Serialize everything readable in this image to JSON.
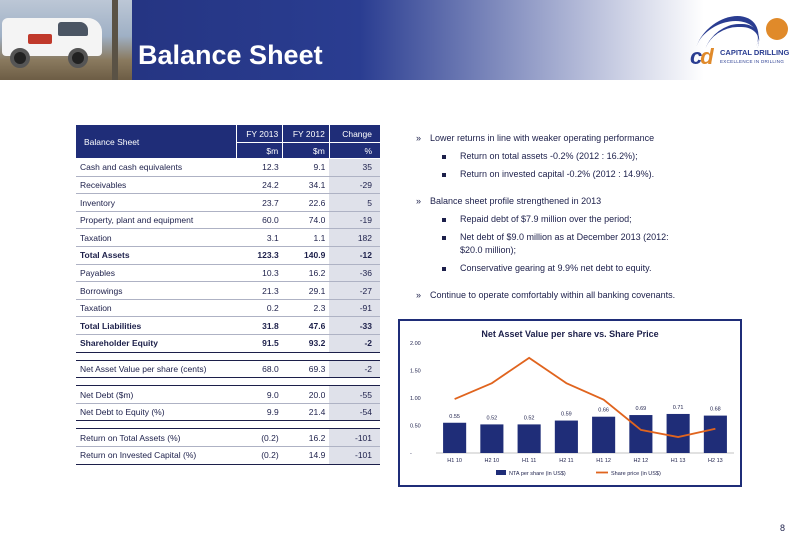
{
  "page": {
    "title": "Balance Sheet",
    "number": "8"
  },
  "logo": {
    "name": "CAPITAL DRILLING",
    "tagline": "EXCELLENCE IN DRILLING",
    "mark": "cd"
  },
  "table": {
    "header": {
      "label": "Balance Sheet",
      "col1": "FY 2013",
      "col2": "FY 2012",
      "col3": "Change",
      "unit1": "$m",
      "unit2": "$m",
      "unit3": "%"
    },
    "rows": [
      {
        "label": "Cash and cash equivalents",
        "fy2013": "12.3",
        "fy2012": "9.1",
        "change": "35"
      },
      {
        "label": "Receivables",
        "fy2013": "24.2",
        "fy2012": "34.1",
        "change": "-29"
      },
      {
        "label": "Inventory",
        "fy2013": "23.7",
        "fy2012": "22.6",
        "change": "5"
      },
      {
        "label": "Property, plant and equipment",
        "fy2013": "60.0",
        "fy2012": "74.0",
        "change": "-19"
      },
      {
        "label": "Taxation",
        "fy2013": "3.1",
        "fy2012": "1.1",
        "change": "182"
      },
      {
        "label": "Total Assets",
        "fy2013": "123.3",
        "fy2012": "140.9",
        "change": "-12"
      },
      {
        "label": "Payables",
        "fy2013": "10.3",
        "fy2012": "16.2",
        "change": "-36"
      },
      {
        "label": "Borrowings",
        "fy2013": "21.3",
        "fy2012": "29.1",
        "change": "-27"
      },
      {
        "label": "Taxation",
        "fy2013": "0.2",
        "fy2012": "2.3",
        "change": "-91"
      },
      {
        "label": "Total Liabilities",
        "fy2013": "31.8",
        "fy2012": "47.6",
        "change": "-33"
      },
      {
        "label": "Shareholder Equity",
        "fy2013": "91.5",
        "fy2012": "93.2",
        "change": "-2"
      }
    ],
    "nav": {
      "label": "Net Asset Value per share (cents)",
      "fy2013": "68.0",
      "fy2012": "69.3",
      "change": "-2"
    },
    "debt": [
      {
        "label": "Net Debt  ($m)",
        "fy2013": "9.0",
        "fy2012": "20.0",
        "change": "-55"
      },
      {
        "label": "Net Debt to Equity (%)",
        "fy2013": "9.9",
        "fy2012": "21.4",
        "change": "-54"
      }
    ],
    "returns": [
      {
        "label": "Return on Total Assets (%)",
        "fy2013": "(0.2)",
        "fy2012": "16.2",
        "change": "-101"
      },
      {
        "label": "Return on Invested Capital (%)",
        "fy2013": "(0.2)",
        "fy2012": "14.9",
        "change": "-101"
      }
    ]
  },
  "bullets": [
    {
      "text": "Lower returns in line with weaker operating performance",
      "subs": [
        "Return on total assets -0.2% (2012 : 16.2%);",
        "Return on invested capital -0.2% (2012 : 14.9%)."
      ]
    },
    {
      "text": "Balance sheet profile strengthened in 2013",
      "subs": [
        "Repaid debt of $7.9 million over the period;",
        "Net debt of $9.0 million as at December 2013 (2012:",
        "$20.0 million);",
        "Conservative gearing at 9.9% net debt to equity."
      ]
    },
    {
      "text": "Continue to operate comfortably within all banking covenants.",
      "subs": []
    }
  ],
  "chart_data": {
    "type": "bar",
    "title": "Net Asset Value per share vs. Share Price",
    "categories": [
      "H1 10",
      "H2 10",
      "H1 11",
      "H2 11",
      "H1 12",
      "H2 12",
      "H1 13",
      "H2 13"
    ],
    "series": [
      {
        "name": "NTA per share (in US$)",
        "kind": "bar",
        "color": "#1f2d78",
        "values": [
          0.55,
          0.52,
          0.52,
          0.59,
          0.66,
          0.69,
          0.71,
          0.68
        ]
      },
      {
        "name": "Share price (in US$)",
        "kind": "line",
        "color": "#e0641e",
        "values": [
          0.98,
          1.27,
          1.73,
          1.27,
          0.97,
          0.42,
          0.29,
          0.44
        ]
      }
    ],
    "bar_labels": [
      "0.55",
      "0.52",
      "0.52",
      "0.59",
      "0.66",
      "0.69",
      "0.71",
      "0.68"
    ],
    "yticks": [
      "-",
      "0.50",
      "1.00",
      "1.50",
      "2.00"
    ],
    "ylim": [
      0,
      2.0
    ],
    "legend": "bottom"
  }
}
